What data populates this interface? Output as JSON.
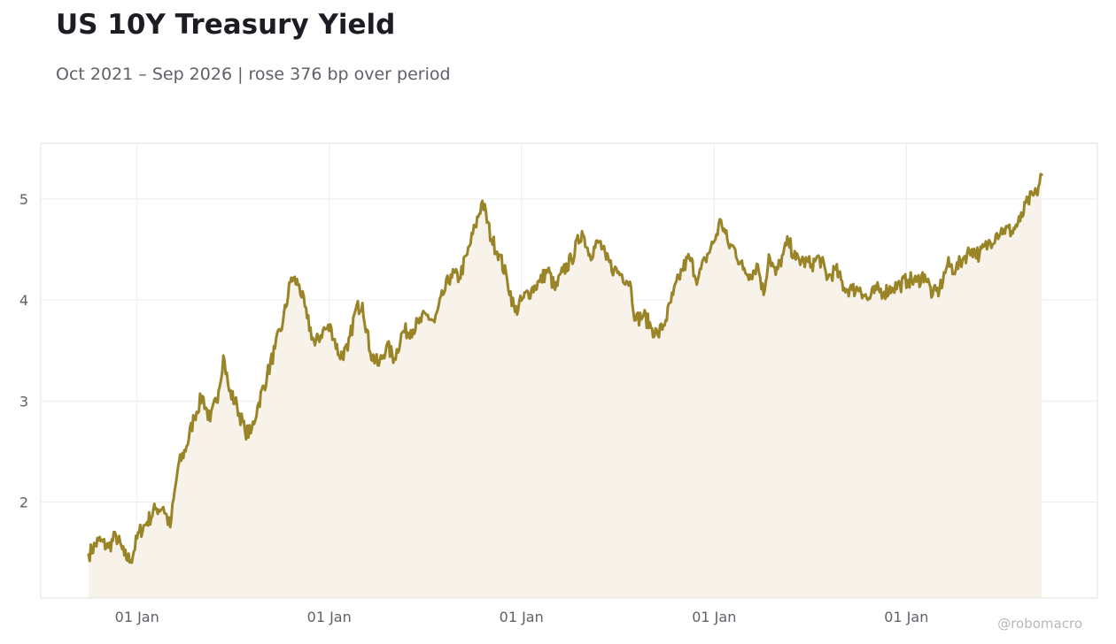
{
  "title": "US 10Y Treasury Yield",
  "subtitle": "Oct 2021 – Sep 2026 | rose 376 bp over period",
  "watermark": "@robomacro",
  "colors": {
    "line": "#9a8428",
    "fill": "#f7f3ea",
    "grid": "#ececec",
    "frame": "#e0e0e0"
  },
  "chart_data": {
    "type": "line",
    "title": "US 10Y Treasury Yield",
    "subtitle": "Oct 2021 – Sep 2026 | rose 376 bp over period",
    "x_range": [
      "2021-10-01",
      "2026-09-30"
    ],
    "ylim": [
      1.05,
      5.55
    ],
    "yticks": [
      2,
      3,
      4,
      5
    ],
    "ytick_labels": [
      "2",
      "3",
      "4",
      "5"
    ],
    "xticks": [
      "2022-01-01",
      "2023-01-01",
      "2024-01-01",
      "2025-01-01",
      "2026-01-01"
    ],
    "xtick_labels": [
      "01 Jan",
      "01 Jan",
      "01 Jan",
      "01 Jan",
      "01 Jan"
    ],
    "grid": true,
    "area_fill": true,
    "series": [
      {
        "points": [
          [
            "2021-10-01",
            1.48
          ],
          [
            "2021-10-20",
            1.62
          ],
          [
            "2021-11-08",
            1.55
          ],
          [
            "2021-11-22",
            1.67
          ],
          [
            "2021-12-08",
            1.47
          ],
          [
            "2021-12-20",
            1.42
          ],
          [
            "2022-01-05",
            1.7
          ],
          [
            "2022-01-20",
            1.8
          ],
          [
            "2022-02-05",
            1.93
          ],
          [
            "2022-02-20",
            1.95
          ],
          [
            "2022-03-05",
            1.75
          ],
          [
            "2022-03-20",
            2.35
          ],
          [
            "2022-04-05",
            2.55
          ],
          [
            "2022-04-20",
            2.85
          ],
          [
            "2022-05-05",
            3.05
          ],
          [
            "2022-05-20",
            2.8
          ],
          [
            "2022-06-05",
            3.1
          ],
          [
            "2022-06-14",
            3.45
          ],
          [
            "2022-06-25",
            3.1
          ],
          [
            "2022-07-10",
            2.95
          ],
          [
            "2022-07-25",
            2.7
          ],
          [
            "2022-08-05",
            2.68
          ],
          [
            "2022-08-20",
            2.98
          ],
          [
            "2022-09-05",
            3.25
          ],
          [
            "2022-09-20",
            3.52
          ],
          [
            "2022-10-05",
            3.78
          ],
          [
            "2022-10-21",
            4.22
          ],
          [
            "2022-11-05",
            4.15
          ],
          [
            "2022-11-20",
            3.82
          ],
          [
            "2022-12-05",
            3.55
          ],
          [
            "2022-12-20",
            3.7
          ],
          [
            "2023-01-05",
            3.72
          ],
          [
            "2023-01-20",
            3.45
          ],
          [
            "2023-02-05",
            3.5
          ],
          [
            "2023-02-20",
            3.9
          ],
          [
            "2023-03-05",
            3.97
          ],
          [
            "2023-03-20",
            3.48
          ],
          [
            "2023-04-05",
            3.35
          ],
          [
            "2023-04-20",
            3.55
          ],
          [
            "2023-05-05",
            3.42
          ],
          [
            "2023-05-20",
            3.68
          ],
          [
            "2023-06-05",
            3.7
          ],
          [
            "2023-06-20",
            3.77
          ],
          [
            "2023-07-05",
            3.85
          ],
          [
            "2023-07-20",
            3.78
          ],
          [
            "2023-08-05",
            4.05
          ],
          [
            "2023-08-20",
            4.25
          ],
          [
            "2023-09-05",
            4.22
          ],
          [
            "2023-09-20",
            4.45
          ],
          [
            "2023-10-05",
            4.72
          ],
          [
            "2023-10-19",
            4.98
          ],
          [
            "2023-11-05",
            4.6
          ],
          [
            "2023-11-20",
            4.45
          ],
          [
            "2023-12-05",
            4.2
          ],
          [
            "2023-12-20",
            3.88
          ],
          [
            "2024-01-05",
            4.02
          ],
          [
            "2024-01-20",
            4.1
          ],
          [
            "2024-02-05",
            4.18
          ],
          [
            "2024-02-20",
            4.3
          ],
          [
            "2024-03-05",
            4.1
          ],
          [
            "2024-03-20",
            4.28
          ],
          [
            "2024-04-05",
            4.4
          ],
          [
            "2024-04-25",
            4.68
          ],
          [
            "2024-05-10",
            4.45
          ],
          [
            "2024-05-28",
            4.58
          ],
          [
            "2024-06-10",
            4.4
          ],
          [
            "2024-06-25",
            4.3
          ],
          [
            "2024-07-10",
            4.25
          ],
          [
            "2024-07-25",
            4.18
          ],
          [
            "2024-08-05",
            3.8
          ],
          [
            "2024-08-20",
            3.85
          ],
          [
            "2024-09-05",
            3.72
          ],
          [
            "2024-09-16",
            3.65
          ],
          [
            "2024-10-01",
            3.8
          ],
          [
            "2024-10-15",
            4.05
          ],
          [
            "2024-11-01",
            4.3
          ],
          [
            "2024-11-15",
            4.42
          ],
          [
            "2024-12-01",
            4.2
          ],
          [
            "2024-12-15",
            4.4
          ],
          [
            "2025-01-01",
            4.58
          ],
          [
            "2025-01-14",
            4.79
          ],
          [
            "2025-01-28",
            4.55
          ],
          [
            "2025-02-10",
            4.5
          ],
          [
            "2025-02-25",
            4.3
          ],
          [
            "2025-03-10",
            4.25
          ],
          [
            "2025-03-25",
            4.35
          ],
          [
            "2025-04-05",
            4.05
          ],
          [
            "2025-04-15",
            4.45
          ],
          [
            "2025-04-28",
            4.25
          ],
          [
            "2025-05-12",
            4.45
          ],
          [
            "2025-05-22",
            4.58
          ],
          [
            "2025-06-05",
            4.4
          ],
          [
            "2025-06-20",
            4.38
          ],
          [
            "2025-07-05",
            4.35
          ],
          [
            "2025-07-20",
            4.42
          ],
          [
            "2025-08-05",
            4.22
          ],
          [
            "2025-08-20",
            4.3
          ],
          [
            "2025-09-05",
            4.12
          ],
          [
            "2025-09-20",
            4.1
          ],
          [
            "2025-10-05",
            4.12
          ],
          [
            "2025-10-20",
            4.0
          ],
          [
            "2025-11-05",
            4.1
          ],
          [
            "2025-11-20",
            4.08
          ],
          [
            "2025-12-05",
            4.12
          ],
          [
            "2025-12-20",
            4.15
          ],
          [
            "2026-01-05",
            4.2
          ],
          [
            "2026-01-20",
            4.18
          ],
          [
            "2026-02-05",
            4.25
          ],
          [
            "2026-02-20",
            4.05
          ],
          [
            "2026-03-05",
            4.1
          ],
          [
            "2026-03-20",
            4.35
          ],
          [
            "2026-04-05",
            4.3
          ],
          [
            "2026-04-20",
            4.42
          ],
          [
            "2026-05-05",
            4.5
          ],
          [
            "2026-05-20",
            4.45
          ],
          [
            "2026-06-05",
            4.55
          ],
          [
            "2026-06-20",
            4.65
          ],
          [
            "2026-07-05",
            4.7
          ],
          [
            "2026-07-20",
            4.68
          ],
          [
            "2026-08-05",
            4.78
          ],
          [
            "2026-08-20",
            4.98
          ],
          [
            "2026-09-05",
            5.05
          ],
          [
            "2026-09-15",
            5.24
          ]
        ]
      }
    ]
  }
}
